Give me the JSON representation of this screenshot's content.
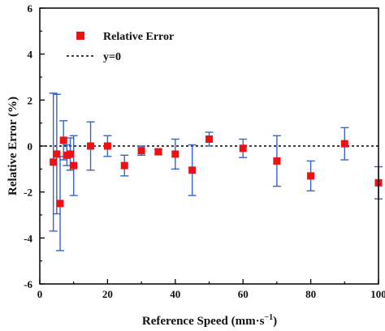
{
  "chart_data": {
    "type": "scatter",
    "xlabel": "Reference Speed (mm·s",
    "xlabel_sup": "−1",
    "xlabel_close": ")",
    "ylabel": "Relative Error (%)",
    "xlim": [
      0,
      100
    ],
    "ylim": [
      -6,
      6
    ],
    "xticks": [
      0,
      20,
      40,
      60,
      80,
      100
    ],
    "yticks": [
      -6,
      -4,
      -2,
      0,
      2,
      4,
      6
    ],
    "grid": false,
    "legend_position": "top-left",
    "series": [
      {
        "name": "Relative Error",
        "marker": "square",
        "color": "#ee1111",
        "errorbar_color": "#3a62c8",
        "points": [
          {
            "x": 4,
            "y": -0.7,
            "err": 3.0
          },
          {
            "x": 5,
            "y": -0.35,
            "err": 2.6
          },
          {
            "x": 6,
            "y": -2.5,
            "err": 2.05
          },
          {
            "x": 7,
            "y": 0.25,
            "err": 0.85
          },
          {
            "x": 8,
            "y": -0.4,
            "err": 0.45
          },
          {
            "x": 9,
            "y": -0.35,
            "err": 0.7
          },
          {
            "x": 10,
            "y": -0.85,
            "err": 1.3
          },
          {
            "x": 15,
            "y": 0.0,
            "err": 1.05
          },
          {
            "x": 20,
            "y": 0.0,
            "err": 0.45
          },
          {
            "x": 25,
            "y": -0.85,
            "err": 0.45
          },
          {
            "x": 30,
            "y": -0.2,
            "err": 0.2
          },
          {
            "x": 35,
            "y": -0.25,
            "err": 0.1
          },
          {
            "x": 40,
            "y": -0.35,
            "err": 0.65
          },
          {
            "x": 45,
            "y": -1.05,
            "err": 1.1
          },
          {
            "x": 50,
            "y": 0.3,
            "err": 0.3
          },
          {
            "x": 60,
            "y": -0.1,
            "err": 0.4
          },
          {
            "x": 70,
            "y": -0.65,
            "err": 1.1
          },
          {
            "x": 80,
            "y": -1.3,
            "err": 0.65
          },
          {
            "x": 90,
            "y": 0.1,
            "err": 0.7
          },
          {
            "x": 100,
            "y": -1.6,
            "err": 0.7
          }
        ]
      },
      {
        "name": "y=0",
        "style": "dashed",
        "color": "#000000",
        "y": 0
      }
    ]
  }
}
